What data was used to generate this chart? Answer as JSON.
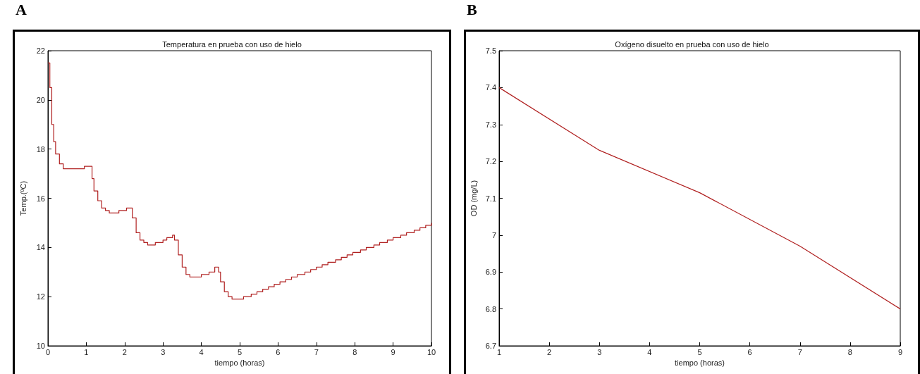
{
  "chart_data": [
    {
      "type": "step",
      "title": "Temperatura en prueba con uso de hielo",
      "xlabel": "tiempo (horas)",
      "ylabel": "Temp.(ºC)",
      "annotations": [
        "A"
      ],
      "xlim": [
        0,
        10
      ],
      "xticks": [
        0,
        1,
        2,
        3,
        4,
        5,
        6,
        7,
        8,
        9,
        10
      ],
      "ylim": [
        10,
        22
      ],
      "yticks": [
        10,
        12,
        14,
        16,
        18,
        20,
        22
      ],
      "grid": false,
      "series": [
        {
          "color": "#b02020",
          "x": [
            0,
            0.05,
            0.1,
            0.15,
            0.2,
            0.3,
            0.4,
            0.95,
            1.15,
            1.2,
            1.3,
            1.4,
            1.5,
            1.6,
            1.85,
            2.05,
            2.2,
            2.3,
            2.4,
            2.5,
            2.6,
            2.8,
            3.0,
            3.1,
            3.25,
            3.3,
            3.4,
            3.5,
            3.6,
            3.7,
            4.0,
            4.2,
            4.35,
            4.45,
            4.5,
            4.6,
            4.7,
            4.8,
            5.1,
            5.3,
            5.45,
            5.6,
            5.75,
            5.9,
            6.05,
            6.2,
            6.35,
            6.5,
            6.7,
            6.85,
            7.0,
            7.15,
            7.3,
            7.5,
            7.65,
            7.8,
            7.95,
            8.15,
            8.3,
            8.5,
            8.65,
            8.85,
            9.0,
            9.2,
            9.35,
            9.55,
            9.7,
            9.85,
            10
          ],
          "values": [
            21.5,
            20.5,
            19,
            18.3,
            17.8,
            17.4,
            17.2,
            17.3,
            16.8,
            16.3,
            15.9,
            15.6,
            15.5,
            15.4,
            15.5,
            15.6,
            15.2,
            14.6,
            14.3,
            14.2,
            14.1,
            14.2,
            14.3,
            14.4,
            14.5,
            14.3,
            13.7,
            13.2,
            12.9,
            12.8,
            12.9,
            13.0,
            13.2,
            13.0,
            12.6,
            12.2,
            12.0,
            11.9,
            12.0,
            12.1,
            12.2,
            12.3,
            12.4,
            12.5,
            12.6,
            12.7,
            12.8,
            12.9,
            13.0,
            13.1,
            13.2,
            13.3,
            13.4,
            13.5,
            13.6,
            13.7,
            13.8,
            13.9,
            14.0,
            14.1,
            14.2,
            14.3,
            14.4,
            14.5,
            14.6,
            14.7,
            14.8,
            14.9,
            15.0
          ]
        }
      ]
    },
    {
      "type": "line",
      "title": "Oxígeno disuelto en prueba con uso de hielo",
      "xlabel": "tiempo (horas)",
      "ylabel": "OD (mg/L)",
      "annotations": [
        "B"
      ],
      "xlim": [
        1,
        9
      ],
      "xticks": [
        1,
        2,
        3,
        4,
        5,
        6,
        7,
        8,
        9
      ],
      "ylim": [
        6.7,
        7.5
      ],
      "yticks": [
        6.7,
        6.8,
        6.9,
        7,
        7.1,
        7.2,
        7.3,
        7.4,
        7.5
      ],
      "grid": false,
      "series": [
        {
          "color": "#b02020",
          "x": [
            1,
            3,
            5,
            7,
            9
          ],
          "values": [
            7.4,
            7.23,
            7.115,
            6.97,
            6.8
          ]
        }
      ]
    }
  ]
}
